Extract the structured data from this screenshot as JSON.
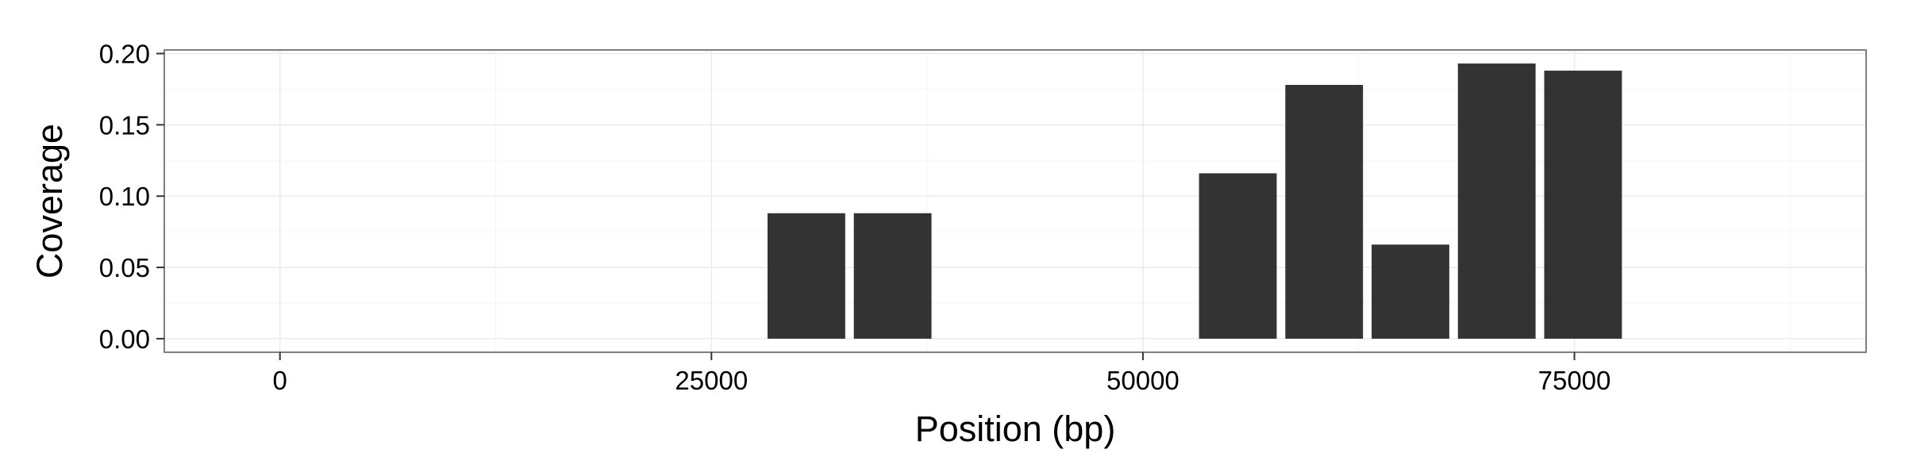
{
  "chart_data": {
    "type": "bar",
    "title": "",
    "xlabel": "Position (bp)",
    "ylabel": "Coverage",
    "x": [
      30500,
      35500,
      55500,
      60500,
      65500,
      70500,
      75500
    ],
    "values": [
      0.088,
      0.088,
      0.116,
      0.178,
      0.066,
      0.193,
      0.188
    ],
    "bar_width": 4500,
    "xlim": [
      -6700,
      91900
    ],
    "ylim": [
      -0.0095,
      0.2025
    ],
    "xticks": [
      0,
      25000,
      50000,
      75000
    ],
    "xtick_labels": [
      "0",
      "25000",
      "50000",
      "75000"
    ],
    "yticks": [
      0,
      0.05,
      0.1,
      0.15,
      0.2
    ],
    "ytick_labels": [
      "0.00",
      "0.05",
      "0.10",
      "0.15",
      "0.20"
    ],
    "grid": true,
    "legend": "none",
    "colors": {
      "bar": "#333333",
      "panel_border": "#7f7f7f",
      "grid_major": "#ebebeb",
      "grid_minor": "#f5f5f5",
      "tick": "#333333"
    }
  }
}
